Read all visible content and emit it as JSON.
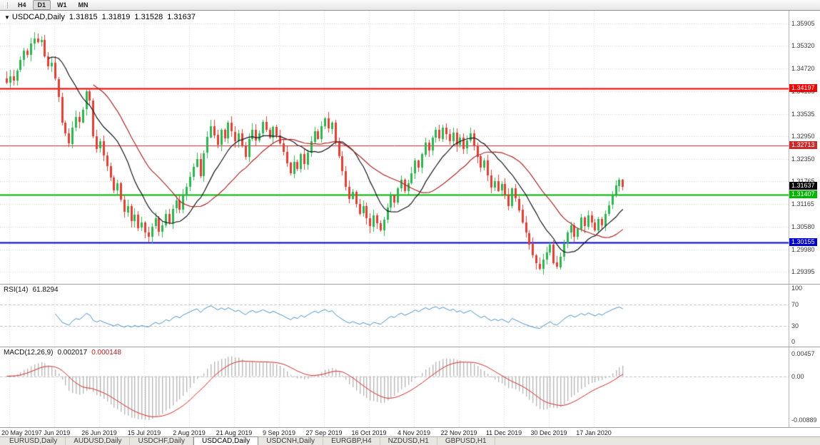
{
  "toolbar": {
    "timeframes": [
      {
        "label": "H4",
        "active": false
      },
      {
        "label": "D1",
        "active": true
      },
      {
        "label": "W1",
        "active": false
      },
      {
        "label": "MN",
        "active": false
      }
    ]
  },
  "main_chart": {
    "menu_icon": "▼",
    "symbol": "USDCAD,Daily",
    "open": "1.31815",
    "high": "1.31819",
    "low": "1.31528",
    "close": "1.31637",
    "price_ticks": [
      {
        "label": "1.35905",
        "value": 1.35905
      },
      {
        "label": "1.35320",
        "value": 1.3532
      },
      {
        "label": "1.34720",
        "value": 1.3472
      },
      {
        "label": "1.34135",
        "value": 1.34135
      },
      {
        "label": "1.33535",
        "value": 1.33535
      },
      {
        "label": "1.32950",
        "value": 1.3295
      },
      {
        "label": "1.32350",
        "value": 1.3235
      },
      {
        "label": "1.31765",
        "value": 1.31765
      },
      {
        "label": "1.31165",
        "value": 1.31165
      },
      {
        "label": "1.30580",
        "value": 1.3058
      },
      {
        "label": "1.29980",
        "value": 1.2998
      },
      {
        "label": "1.29395",
        "value": 1.29395
      }
    ],
    "hlines": [
      {
        "label": "1.34197",
        "value": 1.34197,
        "color": "#f00000",
        "width": 2
      },
      {
        "label": "1.32713",
        "value": 1.32713,
        "color": "#cc2a2a",
        "width": 1
      },
      {
        "label": "1.31407",
        "value": 1.31407,
        "color": "#00b400",
        "width": 2
      },
      {
        "label": "1.30155",
        "value": 1.30155,
        "color": "#0000d0",
        "width": 2
      }
    ],
    "current": {
      "label": "1.31637",
      "value": 1.31637,
      "color": "#000000"
    }
  },
  "rsi_panel": {
    "name": "RSI(14)",
    "value": "61.8294",
    "ticks": [
      {
        "label": "100",
        "value": 100
      },
      {
        "label": "70",
        "value": 70
      },
      {
        "label": "30",
        "value": 30
      },
      {
        "label": "0",
        "value": 0
      }
    ],
    "levels": [
      70,
      30
    ]
  },
  "macd_panel": {
    "name": "MACD(12,26,9)",
    "value_main": "0.002017",
    "value_signal": "0.000148",
    "ticks": [
      {
        "label": "0.00457",
        "value": 0.00457
      },
      {
        "label": "0.00",
        "value": 0
      },
      {
        "label": "-0.00889",
        "value": -0.00889
      }
    ]
  },
  "time_axis": {
    "dates": [
      "20 May 2019",
      "7 Jun 2019",
      "26 Jun 2019",
      "15 Jul 2019",
      "2 Aug 2019",
      "21 Aug 2019",
      "9 Sep 2019",
      "27 Sep 2019",
      "16 Oct 2019",
      "4 Nov 2019",
      "22 Nov 2019",
      "11 Dec 2019",
      "30 Dec 2019",
      "17 Jan 2020"
    ]
  },
  "tab_bar": {
    "tabs": [
      {
        "label": "EURUSD,Daily",
        "active": false
      },
      {
        "label": "AUDUSD,Daily",
        "active": false
      },
      {
        "label": "USDCHF,Daily",
        "active": false
      },
      {
        "label": "USDCAD,Daily",
        "active": true
      },
      {
        "label": "USDCNH,Daily",
        "active": false
      },
      {
        "label": "EURGBP,H4",
        "active": false
      },
      {
        "label": "NZDUSD,H1",
        "active": false
      },
      {
        "label": "GBPUSD,H1",
        "active": false
      }
    ]
  },
  "chart_data": {
    "type": "candlestick",
    "title": "USDCAD,Daily",
    "timeframe": "Daily",
    "price_top": 1.36242,
    "price_bottom": 1.29078,
    "label_start": 1,
    "label_every": 13,
    "ma_fast": 13,
    "ma_slow": 26,
    "rsi_period": 14,
    "macd_params": [
      12,
      26,
      9
    ],
    "last_candle": {
      "o": 1.31815,
      "h": 1.31819,
      "l": 1.31528,
      "c": 1.31637
    },
    "closes": [
      1.3435,
      1.3452,
      1.3441,
      1.3468,
      1.3495,
      1.352,
      1.3509,
      1.3538,
      1.3551,
      1.3542,
      1.3548,
      1.3505,
      1.3478,
      1.3487,
      1.3445,
      1.3398,
      1.333,
      1.3302,
      1.3275,
      1.3318,
      1.3346,
      1.3332,
      1.3365,
      1.3412,
      1.3388,
      1.3295,
      1.3262,
      1.3281,
      1.3244,
      1.3216,
      1.3186,
      1.3152,
      1.3171,
      1.3128,
      1.3096,
      1.3112,
      1.3072,
      1.3089,
      1.3054,
      1.3068,
      1.3042,
      1.3031,
      1.3058,
      1.3079,
      1.3044,
      1.3061,
      1.3091,
      1.3068,
      1.3105,
      1.3126,
      1.3102,
      1.3141,
      1.3163,
      1.3189,
      1.3215,
      1.3236,
      1.3192,
      1.3251,
      1.3293,
      1.3322,
      1.3298,
      1.3272,
      1.3311,
      1.3288,
      1.333,
      1.3307,
      1.3282,
      1.3302,
      1.3269,
      1.3241,
      1.3287,
      1.3312,
      1.3284,
      1.3303,
      1.3332,
      1.3311,
      1.3291,
      1.3319,
      1.3297,
      1.3276,
      1.3254,
      1.3225,
      1.3197,
      1.3228,
      1.3209,
      1.3248,
      1.3221,
      1.3252,
      1.3281,
      1.3309,
      1.3288,
      1.3321,
      1.3342,
      1.3315,
      1.3331,
      1.3282,
      1.3243,
      1.3204,
      1.3162,
      1.3131,
      1.3149,
      1.3118,
      1.3092,
      1.3111,
      1.3079,
      1.3058,
      1.3087,
      1.3066,
      1.3048,
      1.3076,
      1.3108,
      1.3139,
      1.3121,
      1.3158,
      1.3181,
      1.3152,
      1.3172,
      1.3198,
      1.3231,
      1.3212,
      1.3248,
      1.3279,
      1.3258,
      1.3292,
      1.3312,
      1.3289,
      1.3318,
      1.3301,
      1.3282,
      1.3304,
      1.3272,
      1.3291,
      1.3262,
      1.3283,
      1.3302,
      1.3271,
      1.3242,
      1.3212,
      1.3231,
      1.3192,
      1.3161,
      1.3178,
      1.3152,
      1.3169,
      1.3141,
      1.3112,
      1.3158,
      1.3131,
      1.3102,
      1.3068,
      1.3041,
      1.3012,
      1.2982,
      1.2961,
      1.2948,
      1.2972,
      1.2991,
      1.3011,
      1.2963,
      1.2951,
      1.2979,
      1.3012,
      1.3042,
      1.3061,
      1.3032,
      1.3052,
      1.3081,
      1.3058,
      1.3088,
      1.3069,
      1.3049,
      1.3078,
      1.3061,
      1.3092,
      1.3114,
      1.3141,
      1.3165,
      1.31815,
      1.31637
    ],
    "colors": {
      "up": "#2eb350",
      "down": "#de3f35",
      "ma_fast": "#16161e",
      "ma_slow": "#aa2b2b",
      "rsi_line": "#4a90c8",
      "macd_hist": "#b8b8b8",
      "macd_signal": "#d42a2a",
      "grid": "#d9d9d9",
      "level_dash": "#c4c4c4",
      "scale_sep": "#b0b0b0"
    }
  }
}
